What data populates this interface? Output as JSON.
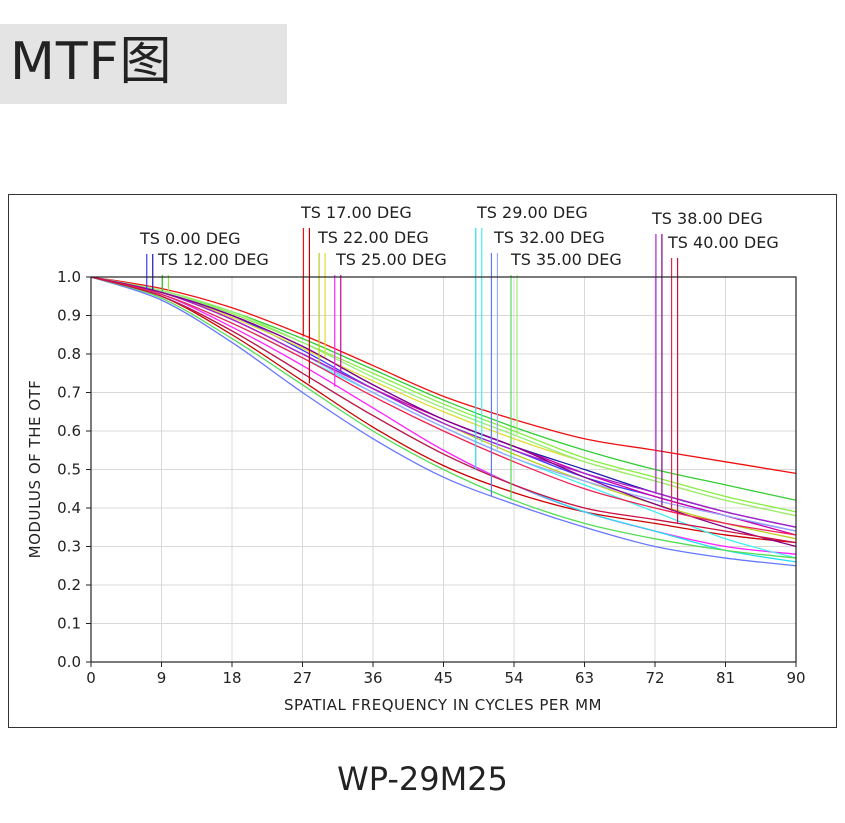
{
  "page": {
    "title": "MTF图",
    "model": "WP-29M25"
  },
  "chart_data": {
    "type": "line",
    "xlabel": "SPATIAL FREQUENCY IN CYCLES PER MM",
    "ylabel": "MODULUS OF THE OTF",
    "xlim": [
      0,
      90
    ],
    "ylim": [
      0,
      1
    ],
    "xticks": [
      "0",
      "9",
      "18",
      "27",
      "36",
      "45",
      "54",
      "63",
      "72",
      "81",
      "90"
    ],
    "yticks": [
      "0.0",
      "0.1",
      "0.2",
      "0.3",
      "0.4",
      "0.5",
      "0.6",
      "0.7",
      "0.8",
      "0.9",
      "1.0"
    ],
    "grid": true,
    "field_labels": [
      {
        "text": "TS 0.00  DEG",
        "x": 7.5,
        "colors": [
          "#3a3aff",
          "#1a1aaa"
        ]
      },
      {
        "text": "TS 12.00  DEG",
        "x": 9.5,
        "colors": [
          "#33cc33",
          "#88ee44"
        ]
      },
      {
        "text": "TS 17.00  DEG",
        "x": 27.5,
        "colors": [
          "#ee1111",
          "#cc0000"
        ]
      },
      {
        "text": "TS 22.00  DEG",
        "x": 29.5,
        "colors": [
          "#bbcc22",
          "#dddd33"
        ]
      },
      {
        "text": "TS 25.00  DEG",
        "x": 31.5,
        "colors": [
          "#ff22ff",
          "#cc00aa"
        ]
      },
      {
        "text": "TS  29.00  DEG",
        "x": 49.5,
        "colors": [
          "#22ddee",
          "#44eeee"
        ]
      },
      {
        "text": "TS  32.00  DEG",
        "x": 51.5,
        "colors": [
          "#6677ff",
          "#99aaff"
        ]
      },
      {
        "text": "TS  35.00  DEG",
        "x": 54.0,
        "colors": [
          "#55dd55",
          "#99ee77"
        ]
      },
      {
        "text": "TS 38.00  DEG",
        "x": 72.5,
        "colors": [
          "#aa22cc",
          "#880088"
        ]
      },
      {
        "text": "TS 40.00  DEG",
        "x": 74.5,
        "colors": [
          "#ee2255",
          "#cc1144"
        ]
      }
    ],
    "series": [
      {
        "color": "#3a3aff",
        "x": [
          0,
          9,
          18,
          27,
          36,
          45,
          54,
          63,
          72,
          81,
          90
        ],
        "y": [
          1.0,
          0.96,
          0.9,
          0.81,
          0.71,
          0.62,
          0.55,
          0.48,
          0.43,
          0.38,
          0.34
        ]
      },
      {
        "color": "#1a1aaa",
        "x": [
          0,
          9,
          18,
          27,
          36,
          45,
          54,
          63,
          72,
          81,
          90
        ],
        "y": [
          1.0,
          0.96,
          0.9,
          0.82,
          0.72,
          0.63,
          0.56,
          0.5,
          0.44,
          0.39,
          0.35
        ]
      },
      {
        "color": "#33cc33",
        "x": [
          0,
          9,
          18,
          27,
          36,
          45,
          54,
          63,
          72,
          81,
          90
        ],
        "y": [
          1.0,
          0.965,
          0.91,
          0.84,
          0.76,
          0.68,
          0.61,
          0.55,
          0.5,
          0.46,
          0.42
        ]
      },
      {
        "color": "#88ee44",
        "x": [
          0,
          9,
          18,
          27,
          36,
          45,
          54,
          63,
          72,
          81,
          90
        ],
        "y": [
          1.0,
          0.965,
          0.905,
          0.83,
          0.75,
          0.67,
          0.6,
          0.53,
          0.48,
          0.43,
          0.39
        ]
      },
      {
        "color": "#ee1111",
        "x": [
          0,
          9,
          18,
          27,
          36,
          45,
          54,
          63,
          72,
          81,
          90
        ],
        "y": [
          1.0,
          0.97,
          0.92,
          0.85,
          0.77,
          0.69,
          0.63,
          0.58,
          0.55,
          0.52,
          0.49
        ]
      },
      {
        "color": "#cc0000",
        "x": [
          0,
          9,
          18,
          27,
          36,
          45,
          54,
          63,
          72,
          81,
          90
        ],
        "y": [
          1.0,
          0.95,
          0.85,
          0.73,
          0.61,
          0.51,
          0.44,
          0.39,
          0.36,
          0.33,
          0.31
        ]
      },
      {
        "color": "#bbcc22",
        "x": [
          0,
          9,
          18,
          27,
          36,
          45,
          54,
          63,
          72,
          81,
          90
        ],
        "y": [
          1.0,
          0.96,
          0.89,
          0.8,
          0.71,
          0.62,
          0.54,
          0.47,
          0.41,
          0.36,
          0.32
        ]
      },
      {
        "color": "#dddd33",
        "x": [
          0,
          9,
          18,
          27,
          36,
          45,
          54,
          63,
          72,
          81,
          90
        ],
        "y": [
          1.0,
          0.96,
          0.895,
          0.815,
          0.73,
          0.65,
          0.58,
          0.52,
          0.47,
          0.42,
          0.38
        ]
      },
      {
        "color": "#ff22ff",
        "x": [
          0,
          9,
          18,
          27,
          36,
          45,
          54,
          63,
          72,
          81,
          90
        ],
        "y": [
          1.0,
          0.955,
          0.87,
          0.77,
          0.66,
          0.55,
          0.46,
          0.39,
          0.34,
          0.3,
          0.28
        ]
      },
      {
        "color": "#cc00aa",
        "x": [
          0,
          9,
          18,
          27,
          36,
          45,
          54,
          63,
          72,
          81,
          90
        ],
        "y": [
          1.0,
          0.96,
          0.89,
          0.8,
          0.71,
          0.63,
          0.56,
          0.49,
          0.43,
          0.38,
          0.33
        ]
      },
      {
        "color": "#22ddee",
        "x": [
          0,
          9,
          18,
          27,
          36,
          45,
          54,
          63,
          72,
          81,
          90
        ],
        "y": [
          1.0,
          0.95,
          0.86,
          0.75,
          0.64,
          0.54,
          0.46,
          0.39,
          0.34,
          0.29,
          0.26
        ]
      },
      {
        "color": "#44eeee",
        "x": [
          0,
          9,
          18,
          27,
          36,
          45,
          54,
          63,
          72,
          81,
          90
        ],
        "y": [
          1.0,
          0.955,
          0.88,
          0.79,
          0.7,
          0.61,
          0.53,
          0.46,
          0.39,
          0.32,
          0.27
        ]
      },
      {
        "color": "#6677ff",
        "x": [
          0,
          9,
          18,
          27,
          36,
          45,
          54,
          63,
          72,
          81,
          90
        ],
        "y": [
          1.0,
          0.94,
          0.83,
          0.7,
          0.58,
          0.48,
          0.41,
          0.35,
          0.3,
          0.27,
          0.25
        ]
      },
      {
        "color": "#99aaff",
        "x": [
          0,
          9,
          18,
          27,
          36,
          45,
          54,
          63,
          72,
          81,
          90
        ],
        "y": [
          1.0,
          0.96,
          0.89,
          0.8,
          0.7,
          0.61,
          0.53,
          0.47,
          0.42,
          0.38,
          0.34
        ]
      },
      {
        "color": "#55dd55",
        "x": [
          0,
          9,
          18,
          27,
          36,
          45,
          54,
          63,
          72,
          81,
          90
        ],
        "y": [
          1.0,
          0.945,
          0.84,
          0.72,
          0.6,
          0.5,
          0.42,
          0.36,
          0.32,
          0.29,
          0.27
        ]
      },
      {
        "color": "#99ee77",
        "x": [
          0,
          9,
          18,
          27,
          36,
          45,
          54,
          63,
          72,
          81,
          90
        ],
        "y": [
          1.0,
          0.965,
          0.91,
          0.83,
          0.74,
          0.66,
          0.59,
          0.52,
          0.47,
          0.42,
          0.38
        ]
      },
      {
        "color": "#aa22cc",
        "x": [
          0,
          9,
          18,
          27,
          36,
          45,
          54,
          63,
          72,
          81,
          90
        ],
        "y": [
          1.0,
          0.96,
          0.89,
          0.8,
          0.71,
          0.62,
          0.55,
          0.49,
          0.44,
          0.39,
          0.35
        ]
      },
      {
        "color": "#880088",
        "x": [
          0,
          9,
          18,
          27,
          36,
          45,
          54,
          63,
          72,
          81,
          90
        ],
        "y": [
          1.0,
          0.96,
          0.9,
          0.82,
          0.72,
          0.63,
          0.56,
          0.48,
          0.41,
          0.35,
          0.3
        ]
      },
      {
        "color": "#ee2255",
        "x": [
          0,
          9,
          18,
          27,
          36,
          45,
          54,
          63,
          72,
          81,
          90
        ],
        "y": [
          1.0,
          0.955,
          0.88,
          0.79,
          0.69,
          0.6,
          0.52,
          0.45,
          0.4,
          0.36,
          0.33
        ]
      },
      {
        "color": "#cc1144",
        "x": [
          0,
          9,
          18,
          27,
          36,
          45,
          54,
          63,
          72,
          81,
          90
        ],
        "y": [
          1.0,
          0.95,
          0.86,
          0.75,
          0.64,
          0.54,
          0.46,
          0.4,
          0.37,
          0.34,
          0.31
        ]
      }
    ]
  }
}
